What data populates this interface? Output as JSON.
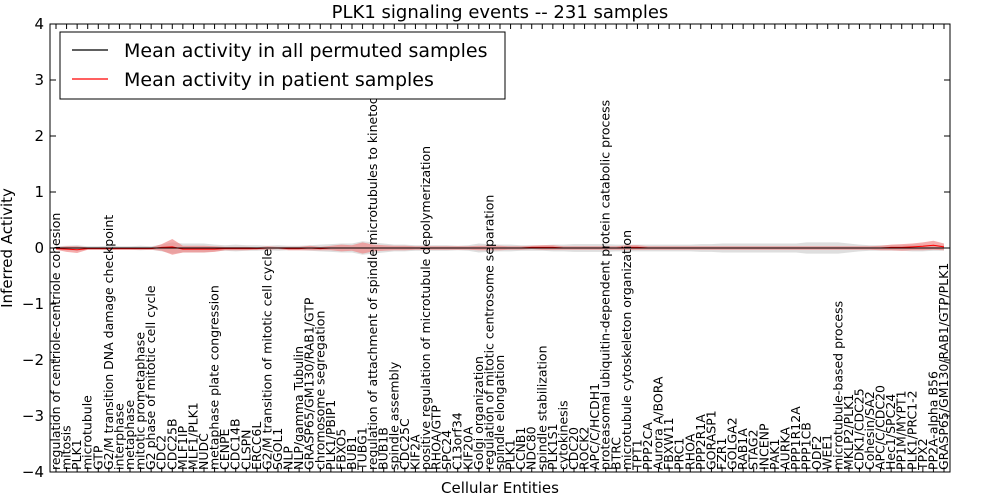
{
  "chart_data": {
    "type": "line",
    "title": "PLK1 signaling events -- 231 samples",
    "xlabel": "Cellular Entities",
    "ylabel": "Inferred Activity",
    "ylim": [
      -4,
      4
    ],
    "yticks": [
      "−4",
      "−3",
      "−2",
      "−1",
      "0",
      "1",
      "2",
      "3",
      "4"
    ],
    "grid": false,
    "legend_position": "top-left",
    "colors": {
      "permuted": "#000000",
      "patient": "#ff0000",
      "patient_band": "#f08080",
      "permuted_band": "#c8c8c8"
    },
    "categories": [
      "regulation of centriole-centriole cohesion",
      "mitosis",
      "PLK1",
      "microtubule",
      "GTP",
      "G2/M transition DNA damage checkpoint",
      "interphase",
      "metaphase",
      "mitotic prometaphase",
      "G2 phase of mitotic cell cycle",
      "CDC2",
      "CDC25B",
      "MLF1IP",
      "MLF1/PLK1",
      "NUDC",
      "metaphase plate congression",
      "CENPE",
      "CDC14B",
      "CLSPN",
      "ERCC6L",
      "G2/M transition of mitotic cell cycle",
      "SGOL1",
      "NLP",
      "NLP/gamma Tubulin",
      "GRASP65/GM130/RAB1/GTP",
      "chromosome segregation",
      "PLK1/PBIP1",
      "FBXO5",
      "BUB1",
      "TUBG1",
      "regulation of attachment of spindle microtubules to kinetochore",
      "BUB1B",
      "spindle assembly",
      "CDC25C",
      "KIF2A",
      "positive regulation of microtubule depolymerization",
      "RHOA/GTP",
      "SPC24",
      "C13orf34",
      "KIF20A",
      "Golgi organization",
      "regulation of mitotic centrosome separation",
      "spindle elongation",
      "PLK1",
      "CCNB1",
      "NDC80",
      "spindle stabilization",
      "PLK1S1",
      "cytokinesis",
      "CDC20",
      "ROCK2",
      "APC/C/HCDH1",
      "proteasomal ubiquitin-dependent protein catabolic process",
      "BTRC",
      "microtubule cytoskeleton organization",
      "TPT1",
      "PPP2CA",
      "Aurora A/BORA",
      "FBXW11",
      "PRC1",
      "RHOA",
      "PPP2R1A",
      "GORASP1",
      "FZR1",
      "GOLGA2",
      "RAB1A",
      "STAG2",
      "INCENP",
      "PAK1",
      "AURKA",
      "PPP1R12A",
      "PPP1CB",
      "ODF2",
      "WEE1",
      "microtubule-based process",
      "MKLP2/PLK1",
      "CDK1/CDC25",
      "Cohesin/SA2",
      "APC/C/CDC20",
      "Hec1/SPC24",
      "PP1M/MYPT1",
      "PLK1/PRC1-2",
      "TPX2",
      "PP2A-alpha B56",
      "GRASP65/GM130/RAB1/GTP/PLK1"
    ],
    "series": [
      {
        "name": "Mean activity in all permuted samples",
        "color": "#000000",
        "values": [
          0,
          0,
          0,
          0,
          0,
          0,
          0,
          0,
          0,
          0,
          0,
          0,
          0,
          0,
          0,
          0,
          0,
          0,
          0,
          0,
          0,
          0,
          0,
          0,
          0,
          0,
          0,
          0,
          0,
          0,
          0,
          0,
          0,
          0,
          0,
          0,
          0,
          0,
          0,
          0,
          0,
          0,
          0,
          0,
          0,
          0,
          0,
          0,
          0,
          0,
          0,
          0,
          0,
          0,
          0,
          0,
          0,
          0,
          0,
          0,
          0,
          0,
          0,
          0,
          0,
          0,
          0,
          0,
          0,
          0,
          0,
          0,
          0,
          0,
          0,
          0,
          0,
          0,
          0,
          0,
          0,
          0,
          0,
          0,
          0
        ],
        "band": [
          0.03,
          0.04,
          0.05,
          0.03,
          0.03,
          0.04,
          0.03,
          0.03,
          0.04,
          0.03,
          0.06,
          0.1,
          0.08,
          0.08,
          0.08,
          0.06,
          0.05,
          0.06,
          0.05,
          0.05,
          0.04,
          0.05,
          0.04,
          0.04,
          0.05,
          0.06,
          0.07,
          0.08,
          0.08,
          0.12,
          0.1,
          0.08,
          0.06,
          0.06,
          0.05,
          0.05,
          0.05,
          0.05,
          0.04,
          0.05,
          0.08,
          0.07,
          0.06,
          0.06,
          0.05,
          0.05,
          0.05,
          0.06,
          0.06,
          0.07,
          0.07,
          0.07,
          0.07,
          0.06,
          0.06,
          0.06,
          0.06,
          0.06,
          0.06,
          0.06,
          0.06,
          0.07,
          0.07,
          0.08,
          0.08,
          0.08,
          0.08,
          0.08,
          0.08,
          0.08,
          0.08,
          0.1,
          0.1,
          0.1,
          0.1,
          0.08,
          0.06,
          0.05,
          0.05,
          0.05,
          0.05,
          0.06,
          0.06,
          0.05,
          0.05
        ]
      },
      {
        "name": "Mean activity in patient samples",
        "color": "#ff0000",
        "values": [
          -0.01,
          -0.02,
          -0.03,
          -0.01,
          -0.01,
          -0.01,
          -0.01,
          -0.01,
          -0.01,
          -0.01,
          0.01,
          0.02,
          -0.02,
          -0.02,
          -0.02,
          -0.02,
          -0.01,
          -0.01,
          -0.01,
          -0.01,
          0.0,
          0.0,
          -0.01,
          -0.01,
          0.0,
          -0.01,
          0.0,
          0.0,
          0.0,
          0.0,
          0.0,
          0.0,
          0.0,
          0.0,
          0.0,
          0.0,
          0.0,
          0.0,
          0.0,
          0.0,
          0.0,
          0.0,
          0.0,
          0.0,
          0.0,
          0.01,
          0.01,
          0.01,
          0.0,
          0.0,
          0.0,
          0.0,
          0.0,
          0.0,
          0.01,
          0.01,
          0.0,
          0.0,
          0.0,
          0.0,
          0.0,
          0.0,
          0.0,
          0.0,
          0.0,
          0.0,
          0.0,
          0.0,
          0.0,
          0.0,
          0.0,
          0.0,
          0.0,
          0.0,
          0.0,
          0.0,
          0.0,
          0.0,
          0.0,
          0.01,
          0.01,
          0.02,
          0.03,
          0.05,
          0.02
        ],
        "band": [
          0.02,
          0.05,
          0.06,
          0.02,
          0.02,
          0.02,
          0.02,
          0.02,
          0.02,
          0.02,
          0.06,
          0.14,
          0.06,
          0.06,
          0.06,
          0.05,
          0.03,
          0.03,
          0.03,
          0.02,
          0.03,
          0.02,
          0.03,
          0.03,
          0.04,
          0.03,
          0.04,
          0.06,
          0.05,
          0.1,
          0.06,
          0.05,
          0.04,
          0.04,
          0.03,
          0.03,
          0.03,
          0.03,
          0.03,
          0.03,
          0.04,
          0.04,
          0.04,
          0.03,
          0.03,
          0.03,
          0.04,
          0.04,
          0.03,
          0.03,
          0.03,
          0.03,
          0.03,
          0.03,
          0.04,
          0.04,
          0.03,
          0.03,
          0.03,
          0.03,
          0.03,
          0.03,
          0.03,
          0.03,
          0.03,
          0.03,
          0.03,
          0.03,
          0.03,
          0.03,
          0.03,
          0.03,
          0.03,
          0.03,
          0.03,
          0.03,
          0.03,
          0.03,
          0.04,
          0.05,
          0.06,
          0.06,
          0.07,
          0.08,
          0.06
        ]
      }
    ]
  }
}
